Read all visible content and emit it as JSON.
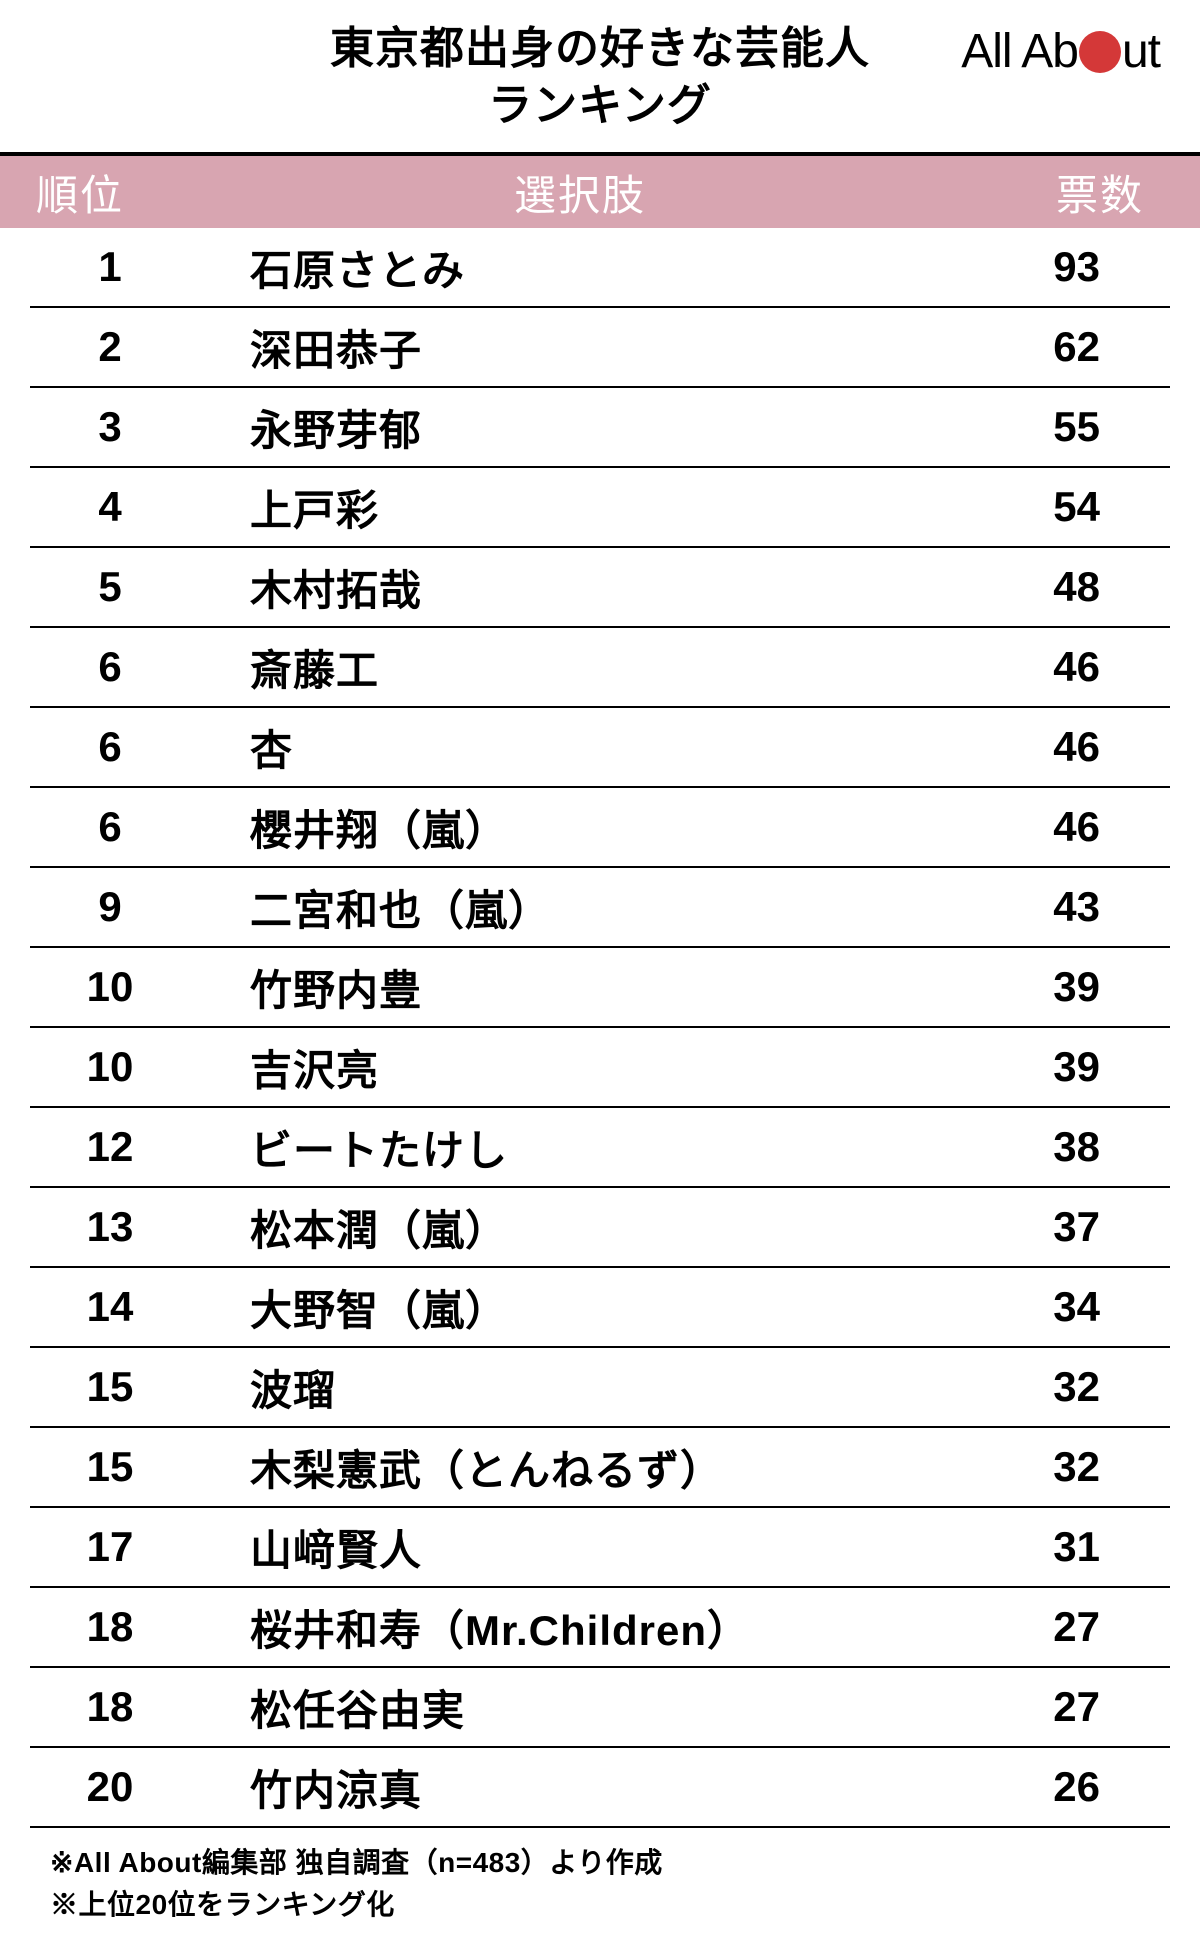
{
  "title": {
    "line1": "東京都出身の好きな芸能人",
    "line2": "ランキング"
  },
  "logo": {
    "part1": "All Ab",
    "part2": "ut",
    "dot_color": "#d43838"
  },
  "columns": {
    "rank": "順位",
    "name": "選択肢",
    "votes": "票数"
  },
  "rows": [
    {
      "rank": "1",
      "name": "石原さとみ",
      "votes": "93"
    },
    {
      "rank": "2",
      "name": "深田恭子",
      "votes": "62"
    },
    {
      "rank": "3",
      "name": "永野芽郁",
      "votes": "55"
    },
    {
      "rank": "4",
      "name": "上戸彩",
      "votes": "54"
    },
    {
      "rank": "5",
      "name": "木村拓哉",
      "votes": "48"
    },
    {
      "rank": "6",
      "name": "斎藤工",
      "votes": "46"
    },
    {
      "rank": "6",
      "name": "杏",
      "votes": "46"
    },
    {
      "rank": "6",
      "name": "櫻井翔（嵐）",
      "votes": "46"
    },
    {
      "rank": "9",
      "name": "二宮和也（嵐）",
      "votes": "43"
    },
    {
      "rank": "10",
      "name": "竹野内豊",
      "votes": "39"
    },
    {
      "rank": "10",
      "name": "吉沢亮",
      "votes": "39"
    },
    {
      "rank": "12",
      "name": "ビートたけし",
      "votes": "38"
    },
    {
      "rank": "13",
      "name": "松本潤（嵐）",
      "votes": "37"
    },
    {
      "rank": "14",
      "name": "大野智（嵐）",
      "votes": "34"
    },
    {
      "rank": "15",
      "name": "波瑠",
      "votes": "32"
    },
    {
      "rank": "15",
      "name": "木梨憲武（とんねるず）",
      "votes": "32"
    },
    {
      "rank": "17",
      "name": "山﨑賢人",
      "votes": "31"
    },
    {
      "rank": "18",
      "name": "桜井和寿（Mr.Children）",
      "votes": "27"
    },
    {
      "rank": "18",
      "name": "松任谷由実",
      "votes": "27"
    },
    {
      "rank": "20",
      "name": "竹内涼真",
      "votes": "26"
    }
  ],
  "footnotes": {
    "line1": "※All About編集部 独自調査（n=483）より作成",
    "line2": "※上位20位をランキング化"
  },
  "style": {
    "header_bg": "#d8a5b1",
    "header_text": "#ffffff",
    "border_color": "#000000",
    "text_color": "#000000",
    "title_fontsize": 44,
    "header_fontsize": 42,
    "cell_fontsize": 42,
    "footnote_fontsize": 28
  }
}
